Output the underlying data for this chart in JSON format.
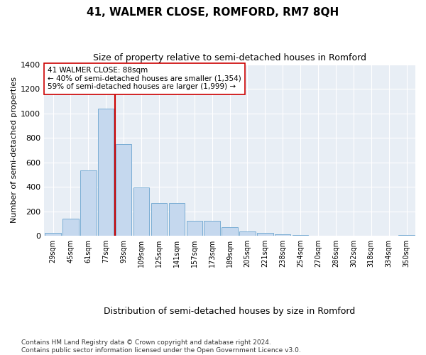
{
  "title": "41, WALMER CLOSE, ROMFORD, RM7 8QH",
  "subtitle": "Size of property relative to semi-detached houses in Romford",
  "xlabel": "Distribution of semi-detached houses by size in Romford",
  "ylabel": "Number of semi-detached properties",
  "categories": [
    "29sqm",
    "45sqm",
    "61sqm",
    "77sqm",
    "93sqm",
    "109sqm",
    "125sqm",
    "141sqm",
    "157sqm",
    "173sqm",
    "189sqm",
    "205sqm",
    "221sqm",
    "238sqm",
    "254sqm",
    "270sqm",
    "286sqm",
    "302sqm",
    "318sqm",
    "334sqm",
    "350sqm"
  ],
  "values": [
    25,
    140,
    535,
    1040,
    750,
    395,
    270,
    270,
    125,
    125,
    70,
    35,
    25,
    12,
    5,
    3,
    2,
    2,
    1,
    1,
    8
  ],
  "bar_color": "#c5d8ee",
  "bar_edge_color": "#7aadd4",
  "vline_color": "#cc0000",
  "annotation_text": "41 WALMER CLOSE: 88sqm\n← 40% of semi-detached houses are smaller (1,354)\n59% of semi-detached houses are larger (1,999) →",
  "annotation_box_color": "#ffffff",
  "annotation_box_edge": "#cc0000",
  "ylim": [
    0,
    1400
  ],
  "yticks": [
    0,
    200,
    400,
    600,
    800,
    1000,
    1200,
    1400
  ],
  "footer": "Contains HM Land Registry data © Crown copyright and database right 2024.\nContains public sector information licensed under the Open Government Licence v3.0.",
  "bg_color": "#ffffff",
  "plot_bg_color": "#e8eef5",
  "title_fontsize": 11,
  "subtitle_fontsize": 9,
  "ylabel_fontsize": 8,
  "xlabel_fontsize": 9,
  "tick_fontsize": 7,
  "footer_fontsize": 6.5,
  "vline_pos": 3.5
}
